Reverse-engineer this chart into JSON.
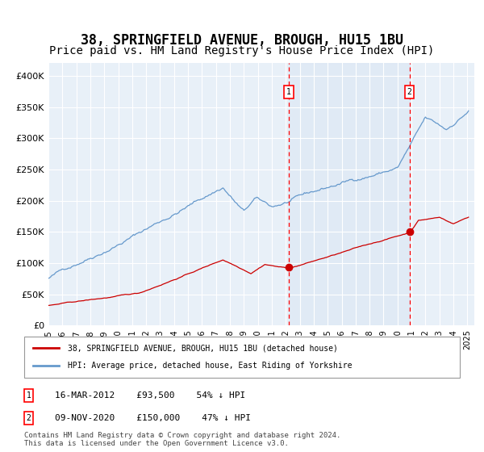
{
  "title": "38, SPRINGFIELD AVENUE, BROUGH, HU15 1BU",
  "subtitle": "Price paid vs. HM Land Registry's House Price Index (HPI)",
  "title_fontsize": 12,
  "subtitle_fontsize": 10,
  "background_color": "#ffffff",
  "plot_bg_color": "#e8f0f8",
  "grid_color": "#ffffff",
  "red_line_color": "#cc0000",
  "blue_line_color": "#6699cc",
  "ylim": [
    0,
    420000
  ],
  "yticks": [
    0,
    50000,
    100000,
    150000,
    200000,
    250000,
    300000,
    350000,
    400000
  ],
  "ytick_labels": [
    "£0",
    "£50K",
    "£100K",
    "£150K",
    "£200K",
    "£250K",
    "£300K",
    "£350K",
    "£400K"
  ],
  "year_start": 1995,
  "year_end": 2025,
  "sale1_date": 2012.2,
  "sale1_price": 93500,
  "sale1_label": "1",
  "sale1_info": "16-MAR-2012    £93,500    54% ↓ HPI",
  "sale2_date": 2020.85,
  "sale2_price": 150000,
  "sale2_label": "2",
  "sale2_info": "09-NOV-2020    £150,000    47% ↓ HPI",
  "legend_label_red": "38, SPRINGFIELD AVENUE, BROUGH, HU15 1BU (detached house)",
  "legend_label_blue": "HPI: Average price, detached house, East Riding of Yorkshire",
  "footer": "Contains HM Land Registry data © Crown copyright and database right 2024.\nThis data is licensed under the Open Government Licence v3.0.",
  "xlabel_years": [
    "1995",
    "1996",
    "1997",
    "1998",
    "1999",
    "2000",
    "2001",
    "2002",
    "2003",
    "2004",
    "2005",
    "2006",
    "2007",
    "2008",
    "2009",
    "2010",
    "2011",
    "2012",
    "2013",
    "2014",
    "2015",
    "2016",
    "2017",
    "2018",
    "2019",
    "2020",
    "2021",
    "2022",
    "2023",
    "2024",
    "2025"
  ]
}
